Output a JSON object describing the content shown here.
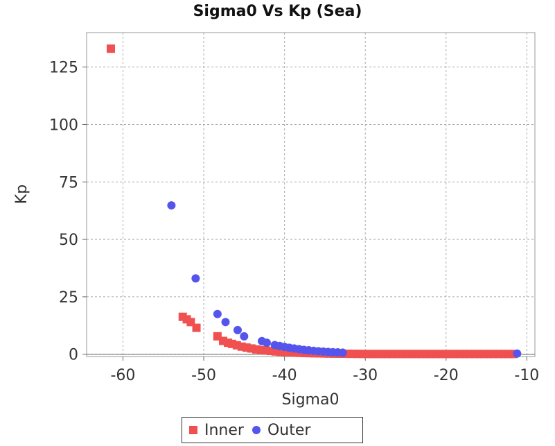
{
  "chart_data": {
    "type": "scatter",
    "title": "Sigma0 Vs Kp (Sea)",
    "xlabel": "Sigma0",
    "ylabel": "Kp",
    "xlim": [
      -64.5,
      -9.0
    ],
    "ylim": [
      -1.0,
      140.0
    ],
    "x_ticks": [
      -60,
      -50,
      -40,
      -30,
      -20,
      -10
    ],
    "y_ticks": [
      0,
      25,
      50,
      75,
      100,
      125
    ],
    "grid": true,
    "legend_position": "bottom",
    "colors": {
      "Inner": "#f05050",
      "Outer": "#5555ee"
    },
    "series": [
      {
        "name": "Inner",
        "marker": "square",
        "points": [
          [
            -61.5,
            133
          ],
          [
            -52.6,
            16.3
          ],
          [
            -52.1,
            15.2
          ],
          [
            -51.6,
            14.0
          ],
          [
            -50.9,
            11.5
          ],
          [
            -48.3,
            7.8
          ],
          [
            -47.6,
            5.8
          ],
          [
            -47.0,
            5.0
          ],
          [
            -46.5,
            4.5
          ],
          [
            -45.9,
            3.9
          ],
          [
            -45.3,
            3.3
          ],
          [
            -44.7,
            2.9
          ],
          [
            -44.1,
            2.5
          ],
          [
            -43.5,
            2.1
          ],
          [
            -42.9,
            1.8
          ],
          [
            -42.3,
            1.6
          ],
          [
            -41.7,
            1.4
          ],
          [
            -41.1,
            1.2
          ],
          [
            -40.5,
            1.05
          ],
          [
            -39.9,
            0.9
          ],
          [
            -39.3,
            0.8
          ],
          [
            -38.7,
            0.7
          ],
          [
            -38.1,
            0.6
          ],
          [
            -37.5,
            0.52
          ],
          [
            -36.9,
            0.46
          ],
          [
            -36.3,
            0.4
          ],
          [
            -35.7,
            0.36
          ],
          [
            -35.1,
            0.32
          ],
          [
            -34.5,
            0.28
          ],
          [
            -33.9,
            0.25
          ],
          [
            -33.3,
            0.22
          ],
          [
            -32.7,
            0.2
          ],
          [
            -32.1,
            0.18
          ],
          [
            -31.5,
            0.16
          ],
          [
            -30.9,
            0.14
          ],
          [
            -30.3,
            0.12
          ],
          [
            -29.7,
            0.1
          ],
          [
            -29.1,
            0.1
          ],
          [
            -28.5,
            0.1
          ],
          [
            -27.9,
            0.1
          ],
          [
            -27.3,
            0.1
          ],
          [
            -26.7,
            0.1
          ],
          [
            -26.1,
            0.1
          ],
          [
            -25.5,
            0.1
          ],
          [
            -24.9,
            0.1
          ],
          [
            -24.3,
            0.1
          ],
          [
            -23.7,
            0.1
          ],
          [
            -23.1,
            0.1
          ],
          [
            -22.5,
            0.1
          ],
          [
            -21.9,
            0.1
          ],
          [
            -21.3,
            0.1
          ],
          [
            -20.7,
            0.1
          ],
          [
            -20.1,
            0.1
          ],
          [
            -19.5,
            0.1
          ],
          [
            -18.9,
            0.1
          ],
          [
            -18.3,
            0.1
          ],
          [
            -17.7,
            0.1
          ],
          [
            -17.1,
            0.1
          ],
          [
            -16.5,
            0.1
          ],
          [
            -15.9,
            0.1
          ],
          [
            -15.3,
            0.1
          ],
          [
            -14.7,
            0.1
          ],
          [
            -14.1,
            0.1
          ],
          [
            -13.5,
            0.1
          ],
          [
            -12.9,
            0.1
          ],
          [
            -12.3,
            0.1
          ],
          [
            -11.7,
            0.1
          ]
        ]
      },
      {
        "name": "Outer",
        "marker": "circle",
        "points": [
          [
            -54.0,
            64.8
          ],
          [
            -51.0,
            33.0
          ],
          [
            -48.3,
            17.5
          ],
          [
            -47.3,
            14.0
          ],
          [
            -45.8,
            10.5
          ],
          [
            -45.0,
            7.8
          ],
          [
            -42.8,
            5.7
          ],
          [
            -42.2,
            5.0
          ],
          [
            -41.2,
            4.0
          ],
          [
            -40.6,
            3.6
          ],
          [
            -40.0,
            3.2
          ],
          [
            -39.4,
            2.8
          ],
          [
            -38.8,
            2.5
          ],
          [
            -38.2,
            2.2
          ],
          [
            -37.6,
            1.9
          ],
          [
            -37.0,
            1.7
          ],
          [
            -36.4,
            1.5
          ],
          [
            -35.8,
            1.3
          ],
          [
            -35.2,
            1.15
          ],
          [
            -34.6,
            1.0
          ],
          [
            -34.0,
            0.9
          ],
          [
            -33.4,
            0.8
          ],
          [
            -32.8,
            0.7
          ],
          [
            -11.2,
            0.3
          ]
        ]
      }
    ]
  }
}
